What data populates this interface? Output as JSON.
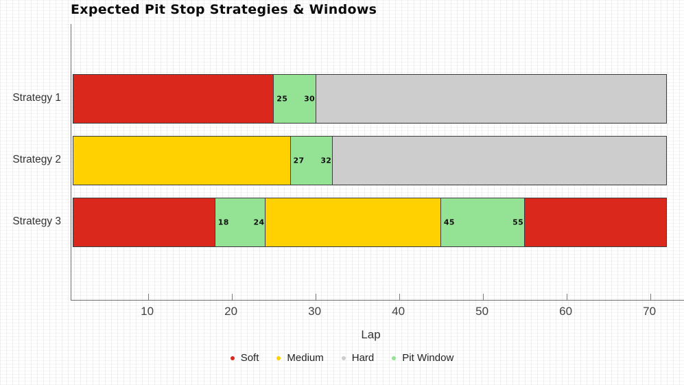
{
  "chart_data": {
    "type": "bar",
    "orientation": "horizontal",
    "stacked": true,
    "title": "Expected Pit Stop Strategies & Windows",
    "xlabel": "Lap",
    "x_ticks": [
      10,
      20,
      30,
      40,
      50,
      60,
      70
    ],
    "x_range": [
      0.85,
      74.05
    ],
    "start_lap": 1,
    "end_lap": 72,
    "categories": [
      "Strategy 1",
      "Strategy 2",
      "Strategy 3"
    ],
    "grid": "graph-paper page background, no inner gridlines",
    "legend_position": "bottom-center",
    "legend": [
      {
        "label": "Soft",
        "color": "#da291c"
      },
      {
        "label": "Medium",
        "color": "#ffd100"
      },
      {
        "label": "Hard",
        "color": "#cdcdcd"
      },
      {
        "label": "Pit Window",
        "color": "#94e294"
      }
    ],
    "bars": [
      {
        "label": "Strategy 1",
        "segments": [
          {
            "compound": "Soft",
            "start": 1,
            "end": 25
          },
          {
            "compound": "Pit Window",
            "start": 25,
            "end": 30,
            "labels": [
              25,
              30
            ]
          },
          {
            "compound": "Hard",
            "start": 30,
            "end": 72
          }
        ]
      },
      {
        "label": "Strategy 2",
        "segments": [
          {
            "compound": "Medium",
            "start": 1,
            "end": 27
          },
          {
            "compound": "Pit Window",
            "start": 27,
            "end": 32,
            "labels": [
              27,
              32
            ]
          },
          {
            "compound": "Hard",
            "start": 32,
            "end": 72
          }
        ]
      },
      {
        "label": "Strategy 3",
        "segments": [
          {
            "compound": "Soft",
            "start": 1,
            "end": 18
          },
          {
            "compound": "Pit Window",
            "start": 18,
            "end": 24,
            "labels": [
              18,
              24
            ]
          },
          {
            "compound": "Medium",
            "start": 24,
            "end": 45
          },
          {
            "compound": "Pit Window",
            "start": 45,
            "end": 55,
            "labels": [
              45,
              55
            ]
          },
          {
            "compound": "Soft",
            "start": 55,
            "end": 72
          }
        ]
      }
    ],
    "style": {
      "segment_border_color": "#3c3c3c",
      "axis_color": "#6f6f6f",
      "tick_label_color": "#414141",
      "title_color": "#0b0b0b"
    }
  }
}
